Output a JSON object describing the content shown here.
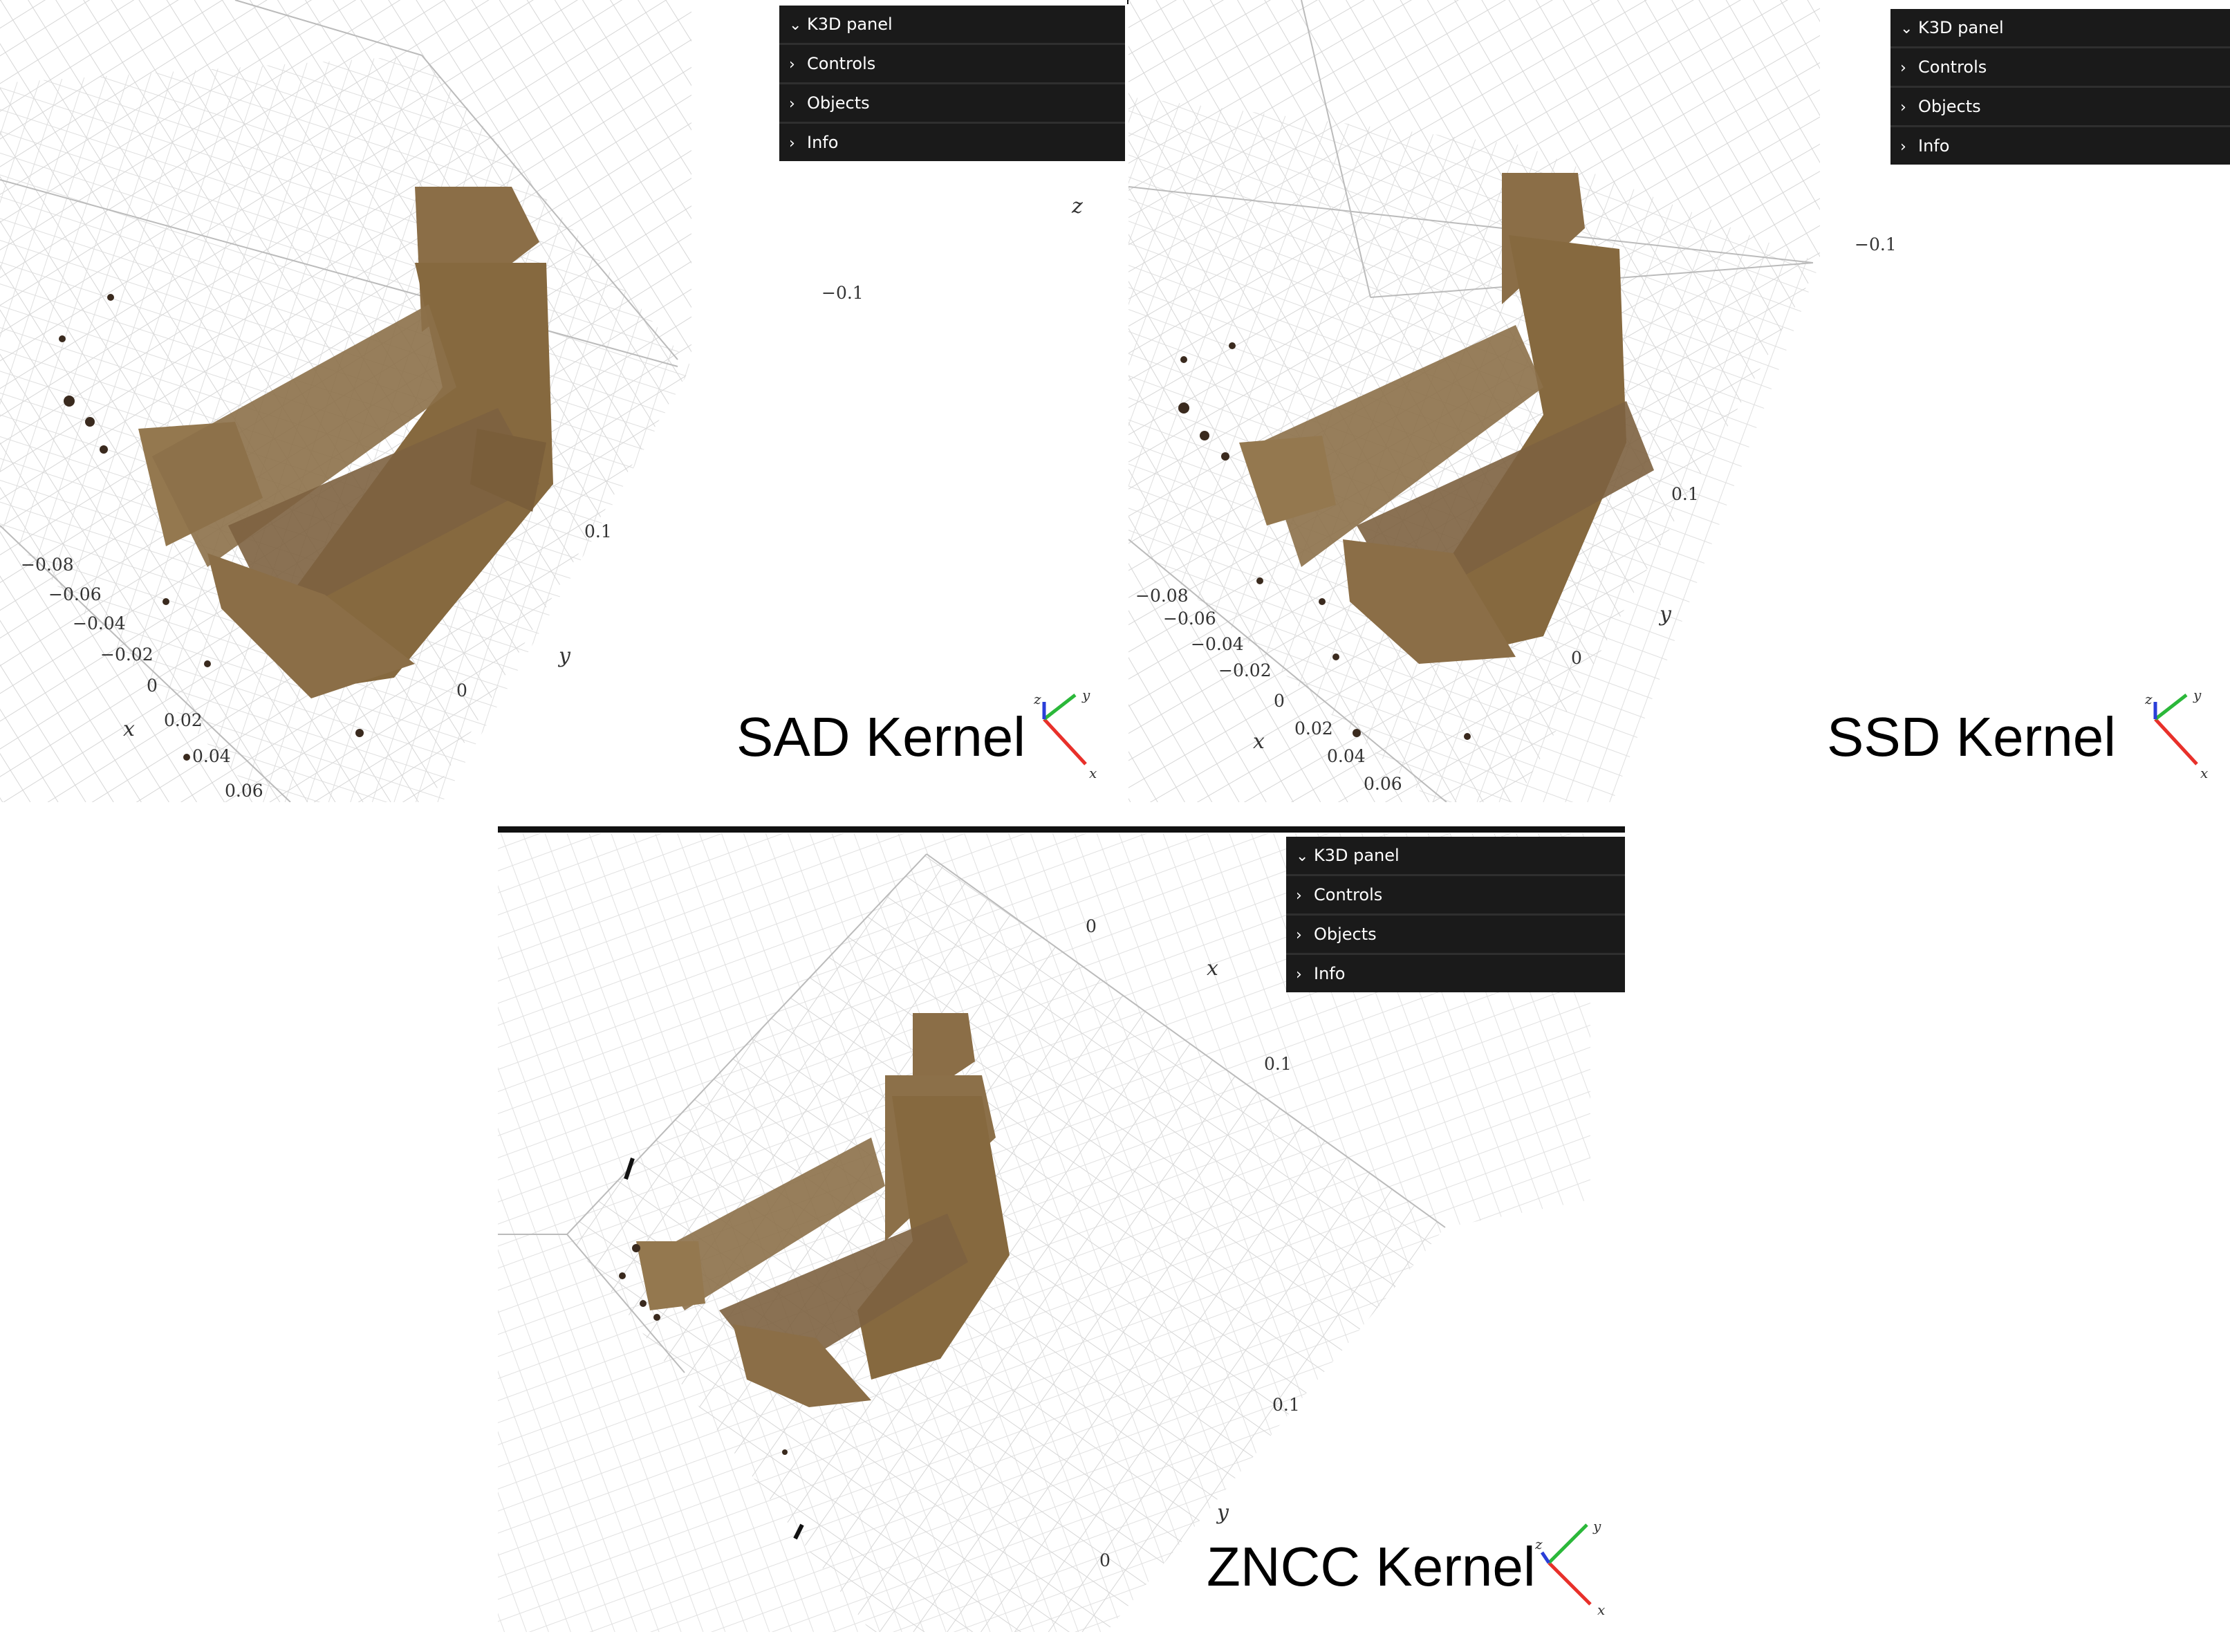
{
  "panel_menu": {
    "title": "K3D panel",
    "items": [
      "Controls",
      "Objects",
      "Info"
    ]
  },
  "icons": {
    "expanded": "chevron-down-icon",
    "collapsed": "chevron-right-icon"
  },
  "viewers": {
    "sad": {
      "label": "SAD Kernel",
      "ticks": [
        "−0.08",
        "−0.06",
        "−0.04",
        "−0.02",
        "0",
        "0.02",
        "0.04",
        "0.06",
        "0",
        "0.1",
        "−0.1"
      ],
      "axes": {
        "x": "x",
        "y": "y",
        "z": "z"
      }
    },
    "ssd": {
      "label": "SSD Kernel",
      "ticks": [
        "−0.08",
        "−0.06",
        "−0.04",
        "−0.02",
        "0",
        "0.02",
        "0.04",
        "0.06",
        "0",
        "0.1",
        "−0.1"
      ],
      "axes": {
        "x": "x",
        "y": "y",
        "z": "z"
      }
    },
    "zncc": {
      "label": "ZNCC Kernel",
      "ticks": [
        "0",
        "0.1",
        "0.1",
        "0"
      ],
      "axes": {
        "x": "x",
        "y": "y",
        "z": "z"
      }
    }
  },
  "triad": {
    "x": "x",
    "y": "y",
    "z": "z",
    "colors": {
      "x": "#e8302a",
      "y": "#2bb83a",
      "z": "#2a3ed8"
    }
  },
  "colors": {
    "panel_bg": "#1a1a1a",
    "grid": "#d4d4d4",
    "cloud": "#8a6f48"
  }
}
